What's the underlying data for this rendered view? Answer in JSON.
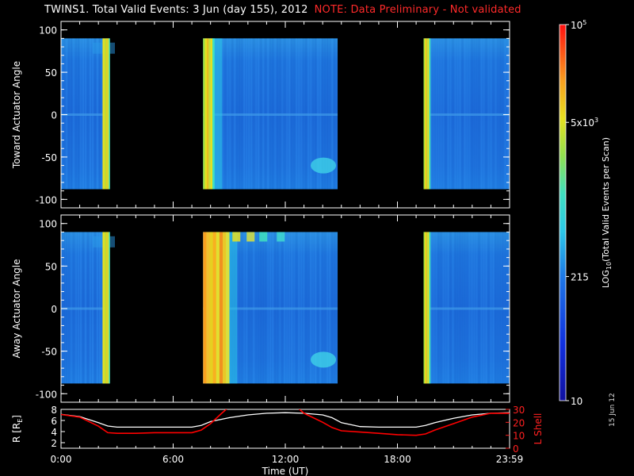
{
  "header": {
    "title": "TWINS1. Total Valid Events:  3 Jun (day 155), 2012",
    "note": "NOTE: Data Preliminary - Not validated"
  },
  "stamp": "15 Jun 12",
  "chart_data": [
    {
      "type": "heatmap",
      "title": "",
      "ylabel": "Toward Actuator Angle",
      "ylim": [
        -110,
        110
      ],
      "yticks": [
        "100",
        "50",
        "0",
        "-50",
        "-100"
      ],
      "data_ylim": [
        -88,
        90
      ],
      "xlim": [
        0,
        24
      ],
      "data_segments": [
        {
          "start": 0.0,
          "end": 2.6,
          "bright_stripe": [
            2.35,
            2.6
          ]
        },
        {
          "start": 7.6,
          "end": 14.8,
          "bright_stripe": [
            7.6,
            8.2
          ]
        },
        {
          "start": 19.4,
          "end": 24.0,
          "bright_stripe": [
            19.4,
            19.75
          ]
        }
      ]
    },
    {
      "type": "heatmap",
      "title": "",
      "ylabel": "Away Actuator Angle",
      "ylim": [
        -110,
        110
      ],
      "yticks": [
        "100",
        "50",
        "0",
        "-50",
        "-100"
      ],
      "data_ylim": [
        -88,
        90
      ],
      "xlim": [
        0,
        24
      ],
      "data_segments": [
        {
          "start": 0.0,
          "end": 2.6,
          "bright_stripe": [
            2.35,
            2.6
          ]
        },
        {
          "start": 7.6,
          "end": 14.8,
          "bright_stripe": [
            7.6,
            9.0
          ]
        },
        {
          "start": 19.4,
          "end": 24.0,
          "bright_stripe": [
            19.4,
            19.75
          ]
        }
      ]
    },
    {
      "type": "line",
      "ylabel_left": "R [R",
      "ylabel_left_sub": "E",
      "ylabel_left_tail": "]",
      "ylabel_right": "L Shell",
      "xlabel": "Time (UT)",
      "xticks": [
        0,
        6,
        12,
        18,
        24
      ],
      "xtick_labels": [
        "0:00",
        "6:00",
        "12:00",
        "18:00",
        "23:59"
      ],
      "yticks_left": [
        "8",
        "6",
        "4",
        "2"
      ],
      "yticks_right": [
        "30",
        "20",
        "10",
        "0"
      ],
      "ylim_left": [
        1,
        8
      ],
      "ylim_right": [
        0,
        30
      ],
      "series": [
        {
          "name": "R",
          "color": "#ffffff",
          "x": [
            0,
            1,
            2,
            2.5,
            3,
            4,
            5,
            6,
            7,
            7.5,
            8,
            9,
            10,
            11,
            12,
            13,
            14,
            14.5,
            15,
            16,
            17,
            18,
            19,
            19.5,
            20,
            21,
            22,
            23,
            24
          ],
          "y": [
            7.1,
            6.7,
            5.6,
            5.0,
            4.8,
            4.8,
            4.8,
            4.8,
            4.8,
            5.1,
            5.8,
            6.5,
            7.0,
            7.3,
            7.4,
            7.3,
            7.0,
            6.5,
            5.6,
            4.9,
            4.8,
            4.8,
            4.8,
            5.1,
            5.6,
            6.4,
            7.0,
            7.3,
            7.4
          ]
        },
        {
          "name": "L Shell",
          "color": "#ff0000",
          "x": [
            0,
            1,
            2,
            2.5,
            3,
            4,
            5,
            6,
            7,
            7.5,
            8,
            8.6,
            9.0,
            12.6,
            13.0,
            14,
            14.5,
            15,
            16,
            17,
            18,
            19,
            19.5,
            20,
            21,
            22,
            23,
            24
          ],
          "y": [
            26,
            24,
            17,
            12,
            11.5,
            11.5,
            12,
            12,
            12,
            14,
            19,
            27,
            32,
            32,
            27,
            20,
            16,
            13.5,
            12.5,
            11.5,
            10.5,
            10,
            11,
            14,
            19,
            24,
            27,
            27
          ]
        }
      ]
    }
  ],
  "colorbar": {
    "label": "LOG",
    "label_sub": "10",
    "label_tail": "(Total Valid Events per Scan)",
    "ticks": [
      {
        "text": "10",
        "sup": "5",
        "frac": 1.0
      },
      {
        "text": "5x10",
        "sup": "3",
        "frac": 0.74
      },
      {
        "text": "215",
        "frac": 0.33
      },
      {
        "text": "10",
        "frac": 0.0
      }
    ]
  }
}
